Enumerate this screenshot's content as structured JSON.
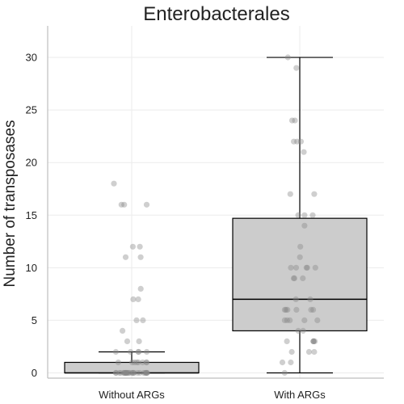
{
  "chart_data": {
    "type": "box",
    "title": "Enterobacterales",
    "xlabel": "",
    "ylabel": "Number of transposases",
    "ylim": [
      -0.5,
      33
    ],
    "yticks": [
      "0",
      "5",
      "10",
      "15",
      "20",
      "25",
      "30"
    ],
    "grid": true,
    "categories": [
      "Without ARGs",
      "With ARGs"
    ],
    "boxes": [
      {
        "category": "Without ARGs",
        "q1": 0,
        "median": 0,
        "q3": 1,
        "whisker_low": 0,
        "whisker_high": 2
      },
      {
        "category": "With ARGs",
        "q1": 4,
        "median": 7,
        "q3": 14.7,
        "whisker_low": 0,
        "whisker_high": 30
      }
    ],
    "points": [
      {
        "category": "Without ARGs",
        "values": [
          18,
          16,
          16,
          16,
          12,
          12,
          11,
          11,
          8,
          7,
          7,
          5,
          5,
          4,
          3,
          3,
          2,
          2,
          2,
          2,
          2,
          1,
          1,
          1,
          1,
          1,
          1,
          1,
          1,
          0,
          0,
          0,
          0,
          0,
          0,
          0,
          0,
          0,
          0,
          0,
          0,
          0,
          0,
          0,
          0,
          0,
          0,
          0,
          0,
          0,
          0,
          0,
          0,
          0,
          0
        ]
      },
      {
        "category": "With ARGs",
        "values": [
          30,
          29,
          24,
          24,
          22,
          22,
          22,
          21,
          17,
          17,
          15,
          15,
          15,
          14,
          12,
          11,
          10,
          10,
          10,
          10,
          10,
          9,
          9,
          9,
          7,
          7,
          6,
          6,
          6,
          6,
          6,
          6,
          5,
          5,
          5,
          5,
          5,
          4,
          4,
          3,
          3,
          3,
          3,
          3,
          2,
          2,
          2,
          1,
          1,
          0
        ]
      }
    ]
  }
}
